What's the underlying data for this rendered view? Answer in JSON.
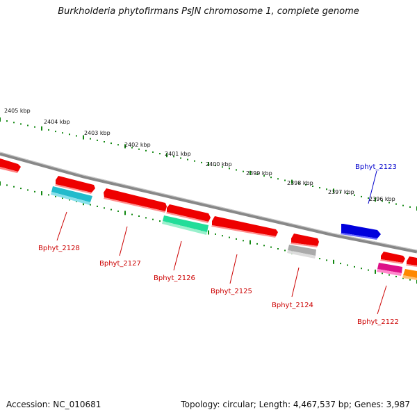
{
  "title": "Burkholderia phytofirmans PsJN chromosome 1, complete genome",
  "footer": {
    "accession": "Accession: NC_010681",
    "stats": "Topology: circular; Length: 4,467,537 bp; Genes: 3,987"
  },
  "scale_labels": [
    "2405 kbp",
    "2404 kbp",
    "2403 kbp",
    "2402 kbp",
    "2401 kbp",
    "2400 kbp",
    "2399 kbp",
    "2398 kbp",
    "2397 kbp",
    "2396 kbp"
  ],
  "gene_labels": [
    {
      "name": "Bphyt_2128",
      "color": "#cc0000"
    },
    {
      "name": "Bphyt_2127",
      "color": "#cc0000"
    },
    {
      "name": "Bphyt_2126",
      "color": "#cc0000"
    },
    {
      "name": "Bphyt_2125",
      "color": "#cc0000"
    },
    {
      "name": "Bphyt_2124",
      "color": "#cc0000"
    },
    {
      "name": "Bphyt_2123",
      "color": "#0000cc"
    },
    {
      "name": "Bphyt_2122",
      "color": "#cc0000"
    }
  ],
  "colors": {
    "backbone": "#888888",
    "scale_dots": "#118811",
    "gene_red": "#ee0000",
    "gene_cyan": "#22bbcc",
    "gene_green": "#22dd99",
    "gene_gray": "#aaaaaa",
    "gene_blue": "#0000dd",
    "gene_magenta": "#dd1188",
    "gene_orange": "#ff8800"
  }
}
